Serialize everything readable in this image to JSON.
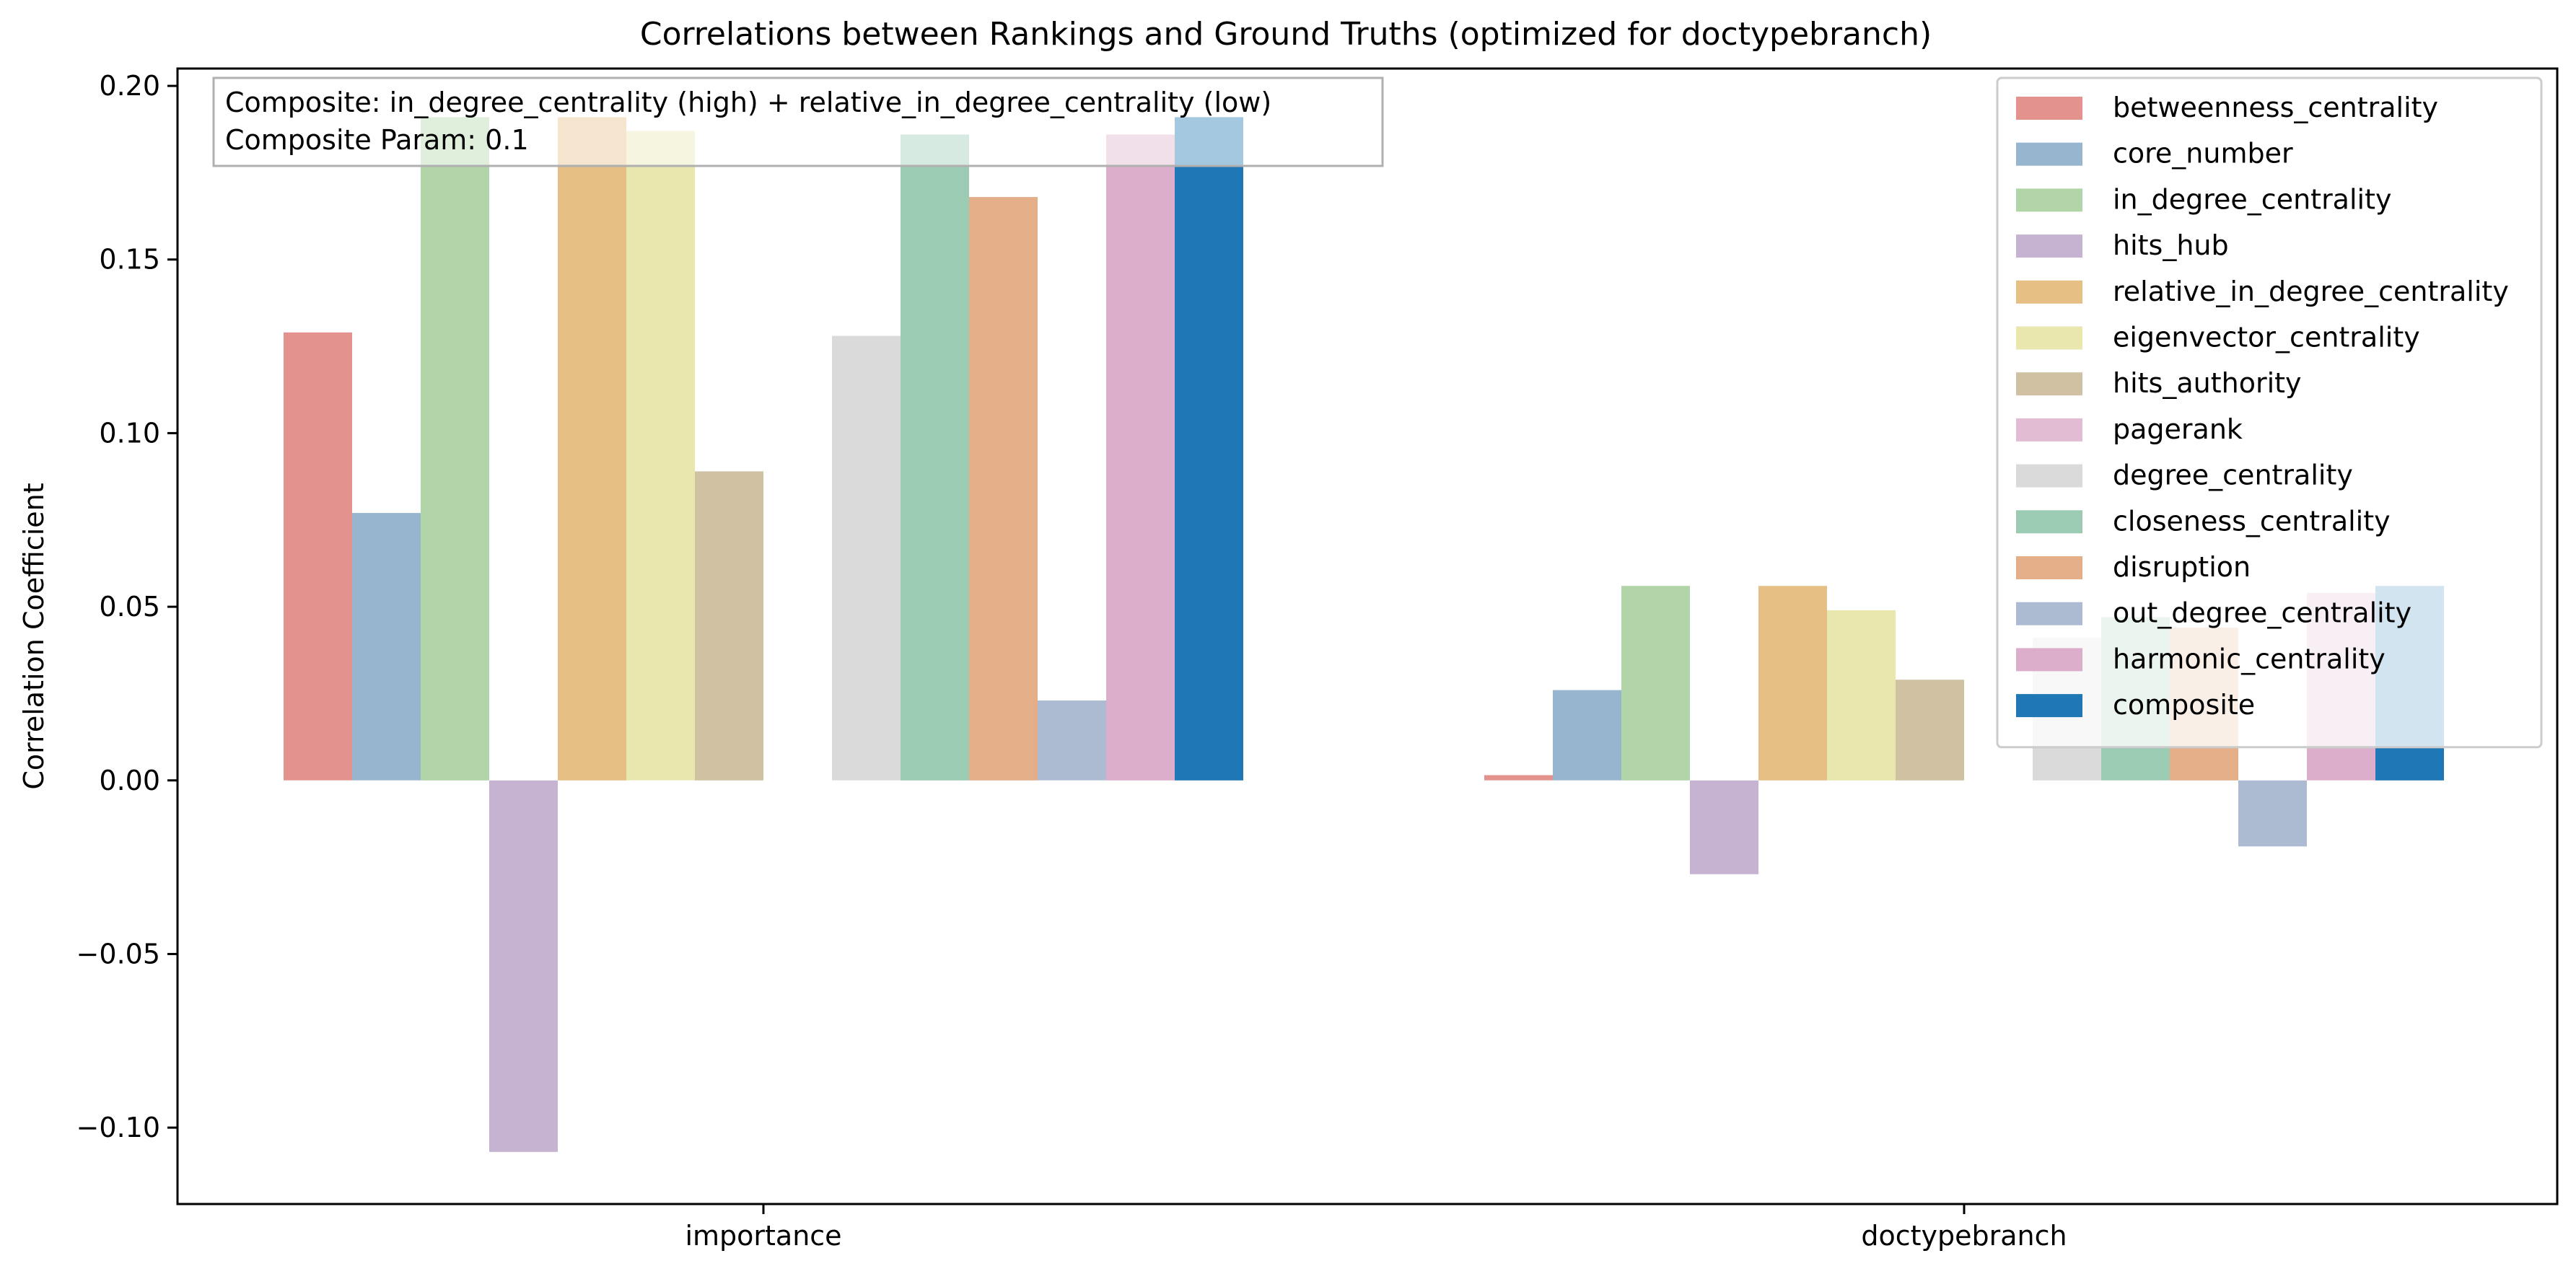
{
  "chart_data": {
    "type": "bar",
    "title": "Correlations between Rankings and Ground Truths (optimized for doctypebranch)",
    "xlabel": "",
    "ylabel": "Correlation Coefficient",
    "categories": [
      "importance",
      "doctypebranch"
    ],
    "ylim": [
      -0.122,
      0.205
    ],
    "yticks": [
      -0.1,
      -0.05,
      0.0,
      0.05,
      0.1,
      0.15,
      0.2
    ],
    "ytick_labels": [
      "−0.10",
      "−0.05",
      "0.00",
      "0.05",
      "0.10",
      "0.15",
      "0.20"
    ],
    "grid": false,
    "legend_position": "top-right",
    "annotation": {
      "line1": "Composite: in_degree_centrality (high) + relative_in_degree_centrality (low)",
      "line2": "Composite Param: 0.1"
    },
    "series": [
      {
        "name": "betweenness_centrality",
        "color": "#e3928d",
        "values": [
          0.129,
          0.0015
        ]
      },
      {
        "name": "core_number",
        "color": "#97b5cf",
        "values": [
          0.077,
          0.026
        ]
      },
      {
        "name": "in_degree_centrality",
        "color": "#b2d4a9",
        "values": [
          0.191,
          0.056
        ]
      },
      {
        "name": "hits_hub",
        "color": "#c6b3d1",
        "values": [
          -0.107,
          -0.027
        ]
      },
      {
        "name": "relative_in_degree_centrality",
        "color": "#e6bf85",
        "values": [
          0.191,
          0.056
        ]
      },
      {
        "name": "eigenvector_centrality",
        "color": "#e9e6ae",
        "values": [
          0.187,
          0.049
        ]
      },
      {
        "name": "hits_authority",
        "color": "#cfc1a1",
        "values": [
          0.089,
          0.029
        ]
      },
      {
        "name": "pagerank",
        "color": "#e2bcd3",
        "values": [
          null,
          null
        ]
      },
      {
        "name": "degree_centrality",
        "color": "#dadada",
        "values": [
          0.128,
          0.041
        ]
      },
      {
        "name": "closeness_centrality",
        "color": "#9bcbb3",
        "values": [
          0.186,
          0.047
        ]
      },
      {
        "name": "disruption",
        "color": "#e4ae89",
        "values": [
          0.168,
          0.044
        ]
      },
      {
        "name": "out_degree_centrality",
        "color": "#acbbd2",
        "values": [
          0.023,
          -0.019
        ]
      },
      {
        "name": "harmonic_centrality",
        "color": "#ddaecb",
        "values": [
          0.186,
          0.054
        ]
      },
      {
        "name": "composite",
        "color": "#2077b5",
        "values": [
          0.191,
          0.056
        ]
      }
    ]
  }
}
